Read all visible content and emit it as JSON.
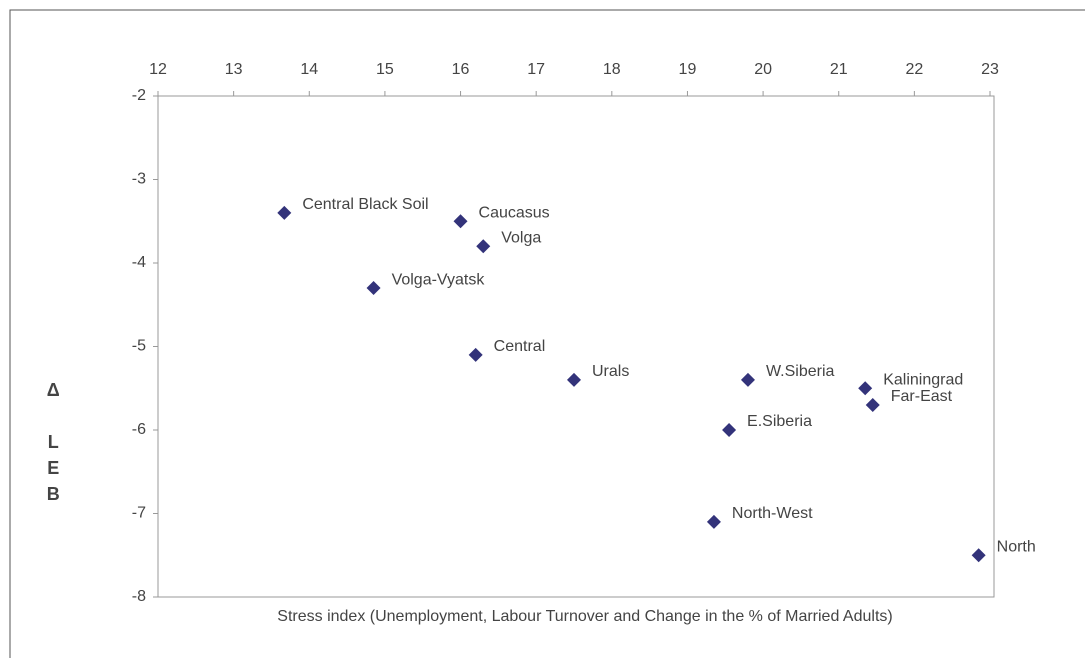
{
  "chart_data": {
    "type": "scatter",
    "x_label": "Stress index (Unemployment, Labour Turnover and Change in the % of Married Adults)",
    "y_label": "Δ LEB",
    "point_labels": [
      "Central Black Soil",
      "Caucasus",
      "Volga",
      "Volga-Vyatsk",
      "Central",
      "Urals",
      "W.Siberia",
      "Kaliningrad",
      "Far-East",
      "E.Siberia",
      "North-West",
      "North"
    ],
    "x": [
      13.67,
      16.0,
      16.3,
      14.85,
      16.2,
      17.5,
      19.8,
      21.35,
      21.45,
      19.55,
      19.35,
      22.85
    ],
    "values": [
      -3.4,
      -3.5,
      -3.8,
      -4.3,
      -5.1,
      -5.4,
      -5.4,
      -5.5,
      -5.7,
      -6.0,
      -7.1,
      -7.5
    ],
    "color": "#33337a",
    "xlim": [
      12,
      23
    ],
    "xticks": [
      12,
      13,
      14,
      15,
      16,
      17,
      18,
      19,
      20,
      21,
      22,
      23
    ],
    "ylim": [
      -8,
      -2
    ],
    "yticks": [
      -8,
      -7,
      -6,
      -5,
      -4,
      -3,
      -2
    ],
    "grid": false
  }
}
